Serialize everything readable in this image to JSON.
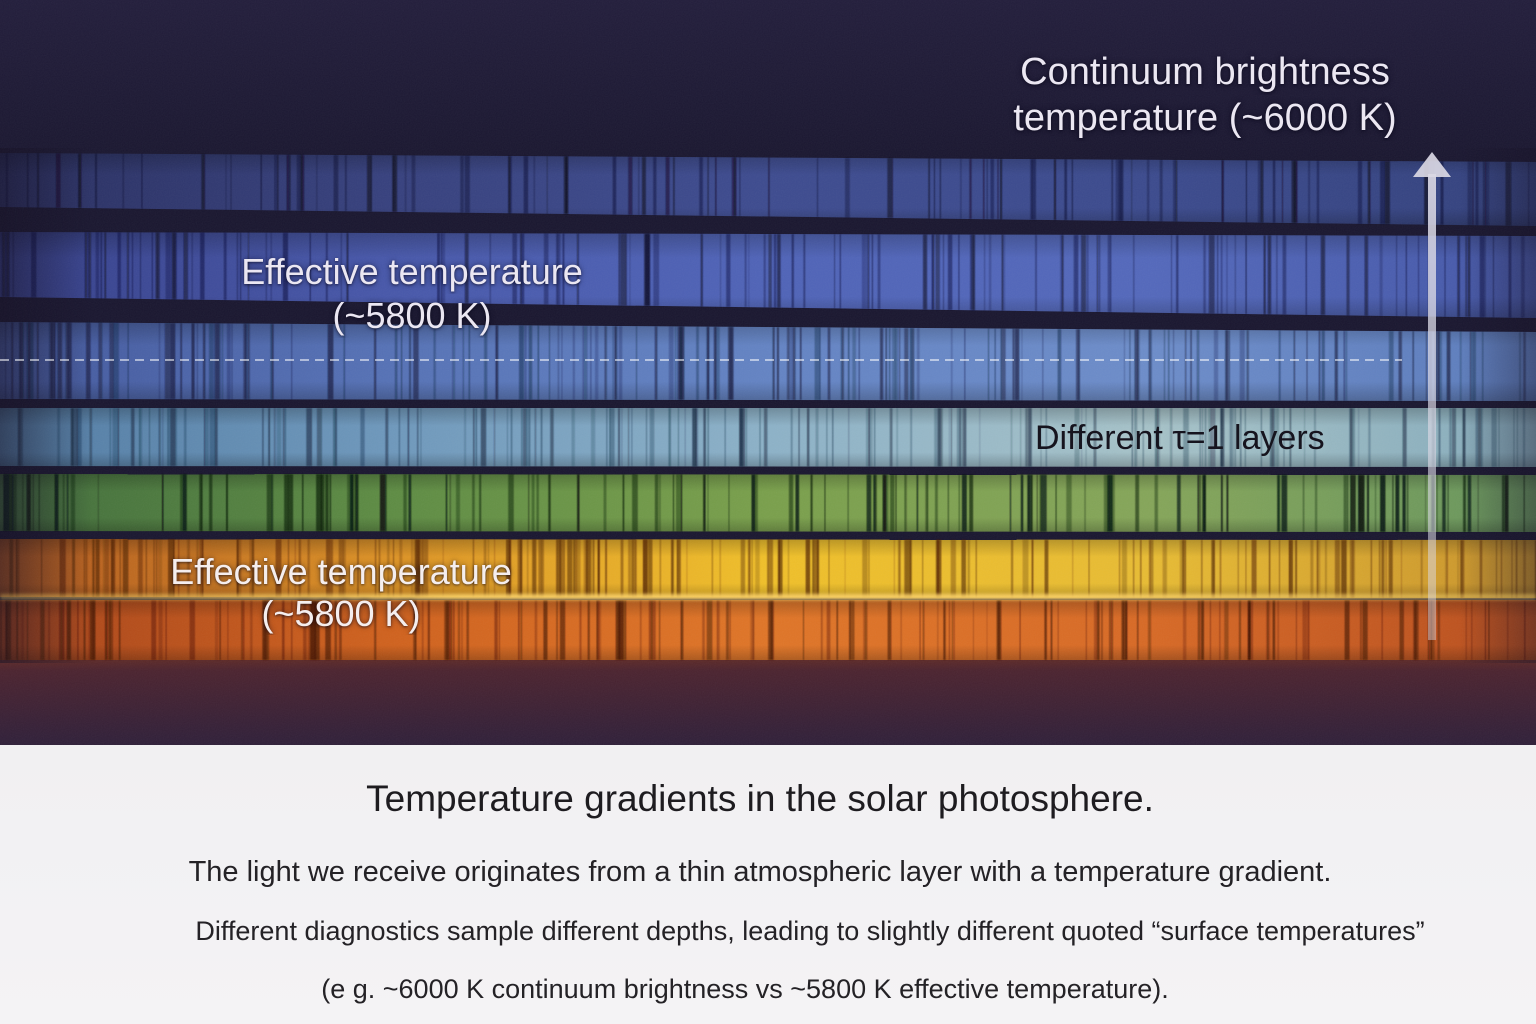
{
  "figure": {
    "labels": {
      "continuum": {
        "line1": "Continuum brightness",
        "line2": "temperature (~6000 K)"
      },
      "effective_upper": {
        "line1": "Effective temperature",
        "line2": "(~5800 K)"
      },
      "layers": "Different τ=1 layers",
      "effective_lower": {
        "line1": "Effective temperature",
        "line2": "(~5800 K)"
      }
    },
    "icons": {
      "vertical_arrow": "arrow-up-icon"
    },
    "colors": {
      "panel_top": "#231e3c",
      "panel_gap": "#1a1730",
      "panel_glow": "#6a3024",
      "panel_bottom": "#30203a",
      "arrow": "#dad8e4",
      "dashed_line": "#ffffff",
      "boundary_glow": "#ffd466",
      "label_light": "#ebe7f2",
      "label_dark": "#16141e",
      "caption_background": "#f4f3f5",
      "caption_text": "#242226",
      "bands": [
        [
          "#2a3062",
          "#37417e",
          "#3e4c90",
          "#3c4b8e",
          "#34427e"
        ],
        [
          "#36408a",
          "#4858aa",
          "#5064b8",
          "#5469bc",
          "#4658a8"
        ],
        [
          "#44599e",
          "#5672b6",
          "#6484c4",
          "#6d8dca",
          "#5c7cbc"
        ],
        [
          "#527ca4",
          "#6e98bc",
          "#8db2c8",
          "#a6c2c8",
          "#86acbc"
        ],
        [
          "#426e3c",
          "#5e8c44",
          "#7aa04c",
          "#86a65a",
          "#68965e"
        ],
        [
          "#b0561e",
          "#dc9226",
          "#f0c02a",
          "#e8bc34",
          "#c8922c"
        ],
        [
          "#a8441a",
          "#d0621e",
          "#e07628",
          "#d86a26",
          "#b84e1e"
        ]
      ]
    }
  },
  "caption": {
    "title": "Temperature gradients in the solar photosphere.",
    "lines": [
      "The light we receive originates from a thin atmospheric layer with a temperature gradient.",
      "Different diagnostics sample different depths, leading to slightly different quoted “surface temperatures”",
      "(e g. ~6000 K continuum brightness vs ~5800 K effective temperature)."
    ]
  }
}
